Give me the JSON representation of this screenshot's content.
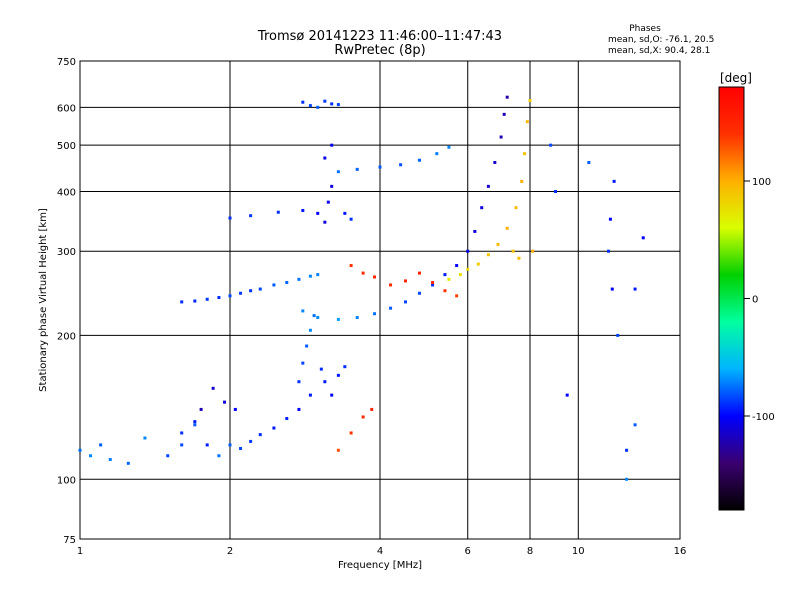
{
  "chart_data": {
    "type": "scatter",
    "title": "Tromsø 20141223 11:46:00–11:47:43",
    "subtitle": "RwPretec (8p)",
    "xlabel": "Frequency [MHz]",
    "ylabel": "Stationary phase Virtual Height [km]",
    "x_scale": "log",
    "y_scale": "log",
    "xlim": [
      1,
      16
    ],
    "ylim": [
      75,
      750
    ],
    "x_ticks": [
      1,
      2,
      4,
      6,
      8,
      10,
      16
    ],
    "y_ticks": [
      75,
      100,
      200,
      300,
      400,
      500,
      600,
      750
    ],
    "x_gridlines": [
      2,
      4,
      6,
      8,
      10
    ],
    "y_gridlines": [
      100,
      200,
      300,
      400,
      500,
      600
    ],
    "grid": true,
    "stats_header": "Phases",
    "stats": [
      "mean, sd,O: -76.1, 20.5",
      "mean, sd,X:  90.4, 28.1"
    ],
    "colorbar": {
      "label": "[deg]",
      "range": [
        -180,
        180
      ],
      "ticks": [
        100,
        0,
        -100
      ],
      "colormap": [
        "#000000",
        "#3a0070",
        "#0000ff",
        "#00b4ff",
        "#00ffa0",
        "#00d000",
        "#d8ff00",
        "#ffb000",
        "#ff3000",
        "#ff0000"
      ]
    },
    "series": [
      {
        "points": [
          [
            1.0,
            115,
            -75
          ],
          [
            1.05,
            112,
            -70
          ],
          [
            1.1,
            118,
            -80
          ],
          [
            1.15,
            110,
            -72
          ],
          [
            1.25,
            108,
            -78
          ],
          [
            1.35,
            122,
            -70
          ],
          [
            1.5,
            112,
            -85
          ],
          [
            1.6,
            125,
            -90
          ],
          [
            1.7,
            130,
            -80
          ],
          [
            1.8,
            118,
            -95
          ],
          [
            1.9,
            112,
            -75
          ],
          [
            1.95,
            145,
            -110
          ],
          [
            2.0,
            118,
            -80
          ],
          [
            2.1,
            116,
            -85
          ],
          [
            2.2,
            120,
            -88
          ],
          [
            2.3,
            124,
            -90
          ],
          [
            2.45,
            128,
            -95
          ],
          [
            2.6,
            134,
            -92
          ],
          [
            2.75,
            140,
            -100
          ],
          [
            2.9,
            150,
            -95
          ],
          [
            1.6,
            118,
            -85
          ],
          [
            1.75,
            140,
            -120
          ],
          [
            1.85,
            155,
            -115
          ],
          [
            2.05,
            140,
            -100
          ],
          [
            1.7,
            132,
            -95
          ]
        ]
      },
      {
        "points": [
          [
            2.75,
            160,
            -90
          ],
          [
            2.8,
            175,
            -85
          ],
          [
            2.85,
            190,
            -80
          ],
          [
            2.9,
            205,
            -70
          ],
          [
            2.95,
            220,
            -75
          ],
          [
            3.05,
            170,
            -90
          ],
          [
            3.1,
            160,
            -95
          ],
          [
            3.2,
            150,
            -100
          ],
          [
            3.3,
            165,
            -95
          ],
          [
            3.4,
            172,
            -90
          ]
        ]
      },
      {
        "points": [
          [
            1.6,
            235,
            -90
          ],
          [
            1.7,
            236,
            -92
          ],
          [
            1.8,
            238,
            -88
          ],
          [
            1.9,
            240,
            -90
          ],
          [
            2.0,
            242,
            -85
          ],
          [
            2.1,
            245,
            -88
          ],
          [
            2.2,
            248,
            -90
          ],
          [
            2.3,
            250,
            -85
          ],
          [
            2.45,
            255,
            -80
          ],
          [
            2.6,
            258,
            -78
          ],
          [
            2.75,
            262,
            -75
          ],
          [
            2.9,
            266,
            -70
          ],
          [
            3.0,
            268,
            -72
          ]
        ]
      },
      {
        "points": [
          [
            2.8,
            225,
            -70
          ],
          [
            3.0,
            218,
            -68
          ],
          [
            3.3,
            216,
            -65
          ],
          [
            3.6,
            218,
            -70
          ],
          [
            3.9,
            222,
            -75
          ],
          [
            4.2,
            228,
            -80
          ],
          [
            4.5,
            235,
            -85
          ],
          [
            4.8,
            245,
            -85
          ],
          [
            5.1,
            255,
            -90
          ],
          [
            5.4,
            268,
            -95
          ],
          [
            5.7,
            280,
            -100
          ],
          [
            6.0,
            300,
            -105
          ],
          [
            6.2,
            330,
            -110
          ],
          [
            6.4,
            370,
            -110
          ],
          [
            6.6,
            410,
            -115
          ],
          [
            6.8,
            460,
            -115
          ],
          [
            7.0,
            520,
            -120
          ],
          [
            7.1,
            580,
            -120
          ],
          [
            7.2,
            630,
            -125
          ]
        ]
      },
      {
        "points": [
          [
            3.3,
            440,
            -75
          ],
          [
            3.6,
            445,
            -78
          ],
          [
            4.0,
            450,
            -80
          ],
          [
            4.4,
            455,
            -82
          ],
          [
            4.8,
            465,
            -78
          ],
          [
            5.2,
            480,
            -72
          ],
          [
            5.5,
            495,
            -70
          ]
        ]
      },
      {
        "points": [
          [
            2.0,
            352,
            -90
          ],
          [
            2.2,
            356,
            -88
          ],
          [
            2.5,
            362,
            -90
          ],
          [
            2.8,
            365,
            -95
          ],
          [
            3.0,
            360,
            -100
          ],
          [
            3.1,
            345,
            -110
          ],
          [
            3.15,
            380,
            -105
          ],
          [
            3.2,
            410,
            -110
          ],
          [
            3.1,
            470,
            -105
          ],
          [
            3.2,
            500,
            -100
          ],
          [
            3.4,
            360,
            -95
          ],
          [
            3.5,
            350,
            -90
          ]
        ]
      },
      {
        "points": [
          [
            2.8,
            615,
            -90
          ],
          [
            2.9,
            605,
            -85
          ],
          [
            3.0,
            600,
            -80
          ],
          [
            3.1,
            618,
            -88
          ],
          [
            3.2,
            610,
            -90
          ],
          [
            3.3,
            608,
            -85
          ]
        ]
      },
      {
        "points": [
          [
            6.0,
            275,
            80
          ],
          [
            6.3,
            282,
            85
          ],
          [
            6.6,
            295,
            90
          ],
          [
            6.9,
            310,
            95
          ],
          [
            7.2,
            335,
            100
          ],
          [
            7.5,
            370,
            95
          ],
          [
            7.7,
            420,
            100
          ],
          [
            7.8,
            480,
            90
          ],
          [
            7.9,
            560,
            95
          ],
          [
            8.0,
            620,
            85
          ],
          [
            5.5,
            262,
            70
          ],
          [
            5.8,
            268,
            75
          ],
          [
            7.4,
            300,
            90
          ],
          [
            7.6,
            290,
            95
          ],
          [
            8.1,
            300,
            100
          ]
        ]
      },
      {
        "points": [
          [
            3.5,
            280,
            140
          ],
          [
            3.7,
            270,
            145
          ],
          [
            3.9,
            265,
            150
          ],
          [
            4.2,
            255,
            145
          ],
          [
            4.5,
            260,
            150
          ],
          [
            4.8,
            270,
            155
          ],
          [
            5.1,
            258,
            150
          ],
          [
            5.4,
            248,
            140
          ],
          [
            5.7,
            242,
            135
          ],
          [
            3.3,
            115,
            130
          ],
          [
            3.5,
            125,
            140
          ],
          [
            3.7,
            135,
            145
          ],
          [
            3.85,
            140,
            150
          ]
        ]
      },
      {
        "points": [
          [
            11.5,
            300,
            -90
          ],
          [
            11.6,
            350,
            -100
          ],
          [
            11.8,
            420,
            -95
          ],
          [
            12.0,
            200,
            -85
          ],
          [
            11.7,
            250,
            -100
          ],
          [
            13.0,
            130,
            -80
          ],
          [
            12.5,
            115,
            -90
          ],
          [
            9.5,
            150,
            -100
          ],
          [
            9.0,
            400,
            -90
          ],
          [
            8.8,
            500,
            -85
          ],
          [
            12.5,
            100,
            -70
          ],
          [
            13.0,
            250,
            -95
          ],
          [
            13.5,
            320,
            -100
          ],
          [
            10.5,
            460,
            -80
          ]
        ]
      }
    ]
  }
}
